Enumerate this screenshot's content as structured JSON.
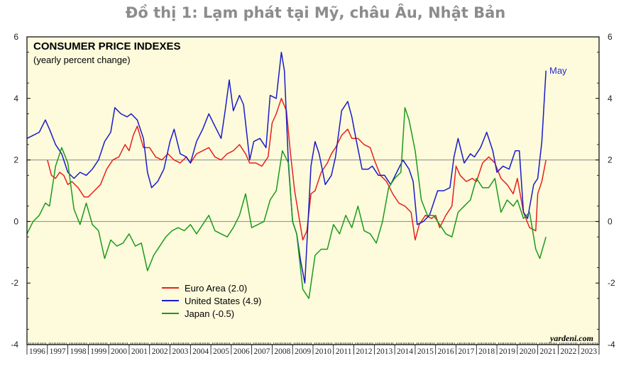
{
  "heading": "Đồ thị 1: Lạm phát tại Mỹ, châu Âu, Nhật Bản",
  "chart_data": {
    "type": "line",
    "title": "CONSUMER PRICE INDEXES",
    "subtitle": "(yearly percent change)",
    "source": "yardeni.com",
    "annotation": "May",
    "xlim": [
      1996,
      2024
    ],
    "ylim": [
      -4,
      6
    ],
    "yticks": [
      -4,
      -2,
      0,
      2,
      4,
      6
    ],
    "xticks": [
      "1996",
      "1997",
      "1998",
      "1999",
      "2000",
      "2001",
      "2002",
      "2003",
      "2004",
      "2005",
      "2006",
      "2007",
      "2008",
      "2009",
      "2010",
      "2011",
      "2012",
      "2013",
      "2014",
      "2015",
      "2016",
      "2017",
      "2018",
      "2019",
      "2020",
      "2021",
      "2022",
      "2023"
    ],
    "reference_lines": [
      0,
      2
    ],
    "legend_position": "lower-left",
    "background": "#fdfbdc",
    "series": [
      {
        "name": "Euro Area (2.0)",
        "color": "#e8201c",
        "x": [
          1997.0,
          1997.2,
          1997.4,
          1997.6,
          1997.8,
          1998.0,
          1998.2,
          1998.5,
          1998.8,
          1999.0,
          1999.3,
          1999.6,
          1999.9,
          2000.2,
          2000.5,
          2000.8,
          2001.0,
          2001.2,
          2001.4,
          2001.7,
          2002.0,
          2002.3,
          2002.6,
          2002.9,
          2003.2,
          2003.5,
          2003.8,
          2004.0,
          2004.3,
          2004.6,
          2004.9,
          2005.2,
          2005.5,
          2005.8,
          2006.1,
          2006.4,
          2006.7,
          2006.9,
          2007.2,
          2007.5,
          2007.8,
          2008.0,
          2008.2,
          2008.45,
          2008.7,
          2008.9,
          2009.1,
          2009.3,
          2009.5,
          2009.7,
          2009.9,
          2010.1,
          2010.4,
          2010.7,
          2010.9,
          2011.1,
          2011.4,
          2011.7,
          2011.9,
          2012.2,
          2012.5,
          2012.8,
          2013.0,
          2013.3,
          2013.6,
          2013.9,
          2014.2,
          2014.5,
          2014.8,
          2015.0,
          2015.2,
          2015.5,
          2015.8,
          2016.0,
          2016.2,
          2016.5,
          2016.8,
          2017.0,
          2017.2,
          2017.5,
          2017.8,
          2018.0,
          2018.3,
          2018.6,
          2018.9,
          2019.2,
          2019.5,
          2019.8,
          2020.0,
          2020.3,
          2020.6,
          2020.9,
          2021.0,
          2021.2,
          2021.4
        ],
        "values": [
          2.0,
          1.5,
          1.4,
          1.6,
          1.5,
          1.2,
          1.3,
          1.1,
          0.8,
          0.8,
          1.0,
          1.2,
          1.7,
          2.0,
          2.1,
          2.5,
          2.3,
          2.8,
          3.1,
          2.4,
          2.4,
          2.1,
          2.0,
          2.2,
          2.0,
          1.9,
          2.1,
          1.9,
          2.2,
          2.3,
          2.4,
          2.1,
          2.0,
          2.2,
          2.3,
          2.5,
          2.2,
          1.9,
          1.9,
          1.8,
          2.1,
          3.2,
          3.5,
          4.0,
          3.6,
          2.2,
          1.0,
          0.2,
          -0.6,
          -0.3,
          0.9,
          1.0,
          1.6,
          1.9,
          2.2,
          2.4,
          2.8,
          3.0,
          2.7,
          2.7,
          2.5,
          2.4,
          2.0,
          1.5,
          1.3,
          0.9,
          0.6,
          0.5,
          0.3,
          -0.6,
          -0.1,
          0.2,
          0.1,
          0.2,
          -0.2,
          0.2,
          0.5,
          1.8,
          1.5,
          1.3,
          1.4,
          1.3,
          1.9,
          2.1,
          1.9,
          1.4,
          1.2,
          0.9,
          1.4,
          0.3,
          -0.2,
          -0.3,
          0.9,
          1.3,
          2.0
        ]
      },
      {
        "name": "United States (4.9)",
        "color": "#1a1ac8",
        "x": [
          1996.0,
          1996.3,
          1996.6,
          1996.9,
          1997.1,
          1997.4,
          1997.7,
          1998.0,
          1998.3,
          1998.6,
          1998.9,
          1999.2,
          1999.5,
          1999.8,
          2000.1,
          2000.3,
          2000.6,
          2000.9,
          2001.1,
          2001.4,
          2001.7,
          2001.9,
          2002.1,
          2002.4,
          2002.7,
          2003.0,
          2003.2,
          2003.5,
          2003.8,
          2004.0,
          2004.3,
          2004.6,
          2004.9,
          2005.2,
          2005.5,
          2005.7,
          2005.9,
          2006.1,
          2006.4,
          2006.6,
          2006.9,
          2007.1,
          2007.4,
          2007.7,
          2007.9,
          2008.2,
          2008.45,
          2008.6,
          2008.8,
          2009.0,
          2009.2,
          2009.4,
          2009.6,
          2009.9,
          2010.1,
          2010.3,
          2010.6,
          2010.9,
          2011.1,
          2011.4,
          2011.7,
          2011.9,
          2012.1,
          2012.4,
          2012.7,
          2012.9,
          2013.2,
          2013.5,
          2013.8,
          2014.1,
          2014.4,
          2014.7,
          2014.9,
          2015.1,
          2015.4,
          2015.7,
          2015.9,
          2016.1,
          2016.4,
          2016.7,
          2016.9,
          2017.1,
          2017.4,
          2017.7,
          2017.9,
          2018.2,
          2018.5,
          2018.8,
          2019.0,
          2019.3,
          2019.6,
          2019.9,
          2020.1,
          2020.3,
          2020.5,
          2020.8,
          2021.0,
          2021.2,
          2021.4
        ],
        "values": [
          2.7,
          2.8,
          2.9,
          3.3,
          3.0,
          2.5,
          2.2,
          1.6,
          1.4,
          1.6,
          1.5,
          1.7,
          2.0,
          2.6,
          2.9,
          3.7,
          3.5,
          3.4,
          3.5,
          3.3,
          2.7,
          1.6,
          1.1,
          1.3,
          1.7,
          2.6,
          3.0,
          2.2,
          2.1,
          1.9,
          2.6,
          3.0,
          3.5,
          3.1,
          2.7,
          3.6,
          4.6,
          3.6,
          4.1,
          3.8,
          2.0,
          2.6,
          2.7,
          2.4,
          4.1,
          4.0,
          5.5,
          4.9,
          1.8,
          0.0,
          -0.4,
          -1.3,
          -2.0,
          1.8,
          2.6,
          2.2,
          1.2,
          1.5,
          2.1,
          3.6,
          3.9,
          3.4,
          2.7,
          1.7,
          1.7,
          1.8,
          1.5,
          1.5,
          1.2,
          1.6,
          2.0,
          1.7,
          1.3,
          -0.1,
          0.0,
          0.2,
          0.6,
          1.0,
          1.0,
          1.1,
          2.1,
          2.7,
          1.9,
          2.2,
          2.1,
          2.4,
          2.9,
          2.3,
          1.6,
          1.8,
          1.7,
          2.3,
          2.3,
          0.3,
          0.1,
          1.2,
          1.4,
          2.6,
          4.9
        ]
      },
      {
        "name": "Japan (-0.5)",
        "color": "#1c9a1c",
        "x": [
          1996.0,
          1996.3,
          1996.6,
          1996.9,
          1997.1,
          1997.4,
          1997.7,
          1998.0,
          1998.3,
          1998.6,
          1998.9,
          1999.2,
          1999.5,
          1999.8,
          2000.1,
          2000.4,
          2000.7,
          2001.0,
          2001.3,
          2001.6,
          2001.9,
          2002.2,
          2002.5,
          2002.8,
          2003.1,
          2003.4,
          2003.7,
          2004.0,
          2004.3,
          2004.6,
          2004.9,
          2005.2,
          2005.5,
          2005.8,
          2006.1,
          2006.4,
          2006.7,
          2007.0,
          2007.3,
          2007.6,
          2007.9,
          2008.2,
          2008.5,
          2008.8,
          2009.0,
          2009.2,
          2009.5,
          2009.8,
          2010.1,
          2010.4,
          2010.7,
          2011.0,
          2011.3,
          2011.6,
          2011.9,
          2012.2,
          2012.5,
          2012.8,
          2013.1,
          2013.4,
          2013.7,
          2014.0,
          2014.3,
          2014.5,
          2014.7,
          2015.0,
          2015.3,
          2015.6,
          2015.9,
          2016.2,
          2016.5,
          2016.8,
          2017.1,
          2017.4,
          2017.7,
          2018.0,
          2018.3,
          2018.6,
          2018.9,
          2019.2,
          2019.5,
          2019.8,
          2020.0,
          2020.3,
          2020.6,
          2020.9,
          2021.1,
          2021.4
        ],
        "values": [
          -0.4,
          0.0,
          0.2,
          0.6,
          0.5,
          1.8,
          2.4,
          1.9,
          0.4,
          -0.1,
          0.6,
          -0.1,
          -0.3,
          -1.2,
          -0.6,
          -0.8,
          -0.7,
          -0.4,
          -0.8,
          -0.7,
          -1.6,
          -1.1,
          -0.8,
          -0.5,
          -0.3,
          -0.2,
          -0.3,
          -0.1,
          -0.4,
          -0.1,
          0.2,
          -0.3,
          -0.4,
          -0.5,
          -0.2,
          0.2,
          0.9,
          -0.2,
          -0.1,
          0.0,
          0.7,
          1.0,
          2.3,
          1.9,
          0.0,
          -0.4,
          -2.2,
          -2.5,
          -1.1,
          -0.9,
          -0.9,
          -0.1,
          -0.4,
          0.2,
          -0.2,
          0.5,
          -0.3,
          -0.4,
          -0.7,
          0.0,
          1.1,
          1.4,
          1.6,
          3.7,
          3.3,
          2.3,
          0.7,
          0.2,
          0.2,
          -0.1,
          -0.4,
          -0.5,
          0.3,
          0.5,
          0.7,
          1.4,
          1.1,
          1.1,
          1.4,
          0.3,
          0.7,
          0.5,
          0.7,
          0.1,
          0.3,
          -0.9,
          -1.2,
          -0.5
        ]
      }
    ]
  }
}
